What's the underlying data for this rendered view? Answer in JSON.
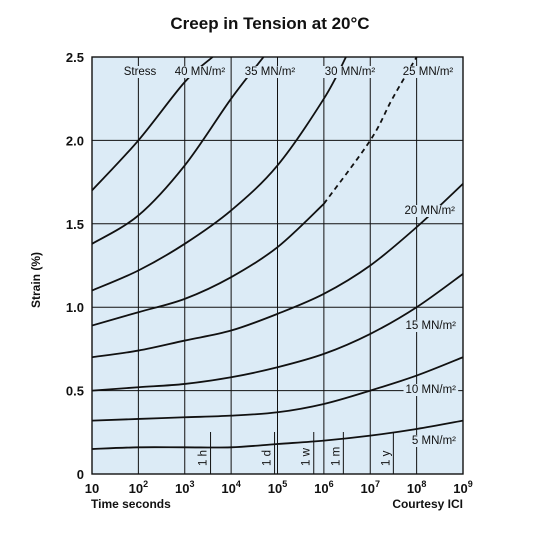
{
  "chart_data": {
    "type": "line",
    "title": "Creep in Tension at 20°C",
    "xlabel": "Time seconds",
    "ylabel": "Strain (%)",
    "credit": "Courtesy ICI",
    "x_scale": "log",
    "xlim": [
      10,
      1000000000
    ],
    "ylim": [
      0,
      2.5
    ],
    "grid": true,
    "x_ticks": [
      {
        "value": 10,
        "label": "10"
      },
      {
        "value": 100,
        "label": "10",
        "exp": "2"
      },
      {
        "value": 1000,
        "label": "10",
        "exp": "3"
      },
      {
        "value": 10000,
        "label": "10",
        "exp": "4"
      },
      {
        "value": 100000,
        "label": "10",
        "exp": "5"
      },
      {
        "value": 1000000,
        "label": "10",
        "exp": "6"
      },
      {
        "value": 10000000,
        "label": "10",
        "exp": "7"
      },
      {
        "value": 100000000,
        "label": "10",
        "exp": "8"
      },
      {
        "value": 1000000000,
        "label": "10",
        "exp": "9"
      }
    ],
    "y_ticks": [
      {
        "value": 0,
        "label": "0"
      },
      {
        "value": 0.5,
        "label": "0.5"
      },
      {
        "value": 1.0,
        "label": "1.0"
      },
      {
        "value": 1.5,
        "label": "1.5"
      },
      {
        "value": 2.0,
        "label": "2.0"
      },
      {
        "value": 2.5,
        "label": "2.5"
      }
    ],
    "time_markers": [
      {
        "value": 3600,
        "label": "1 h"
      },
      {
        "value": 86400,
        "label": "1 d"
      },
      {
        "value": 604800,
        "label": "1 w"
      },
      {
        "value": 2630000,
        "label": "1 m"
      },
      {
        "value": 31500000,
        "label": "1 y"
      }
    ],
    "stress_header": "Stress",
    "series": [
      {
        "name": "40 MN/m²",
        "labeled": true,
        "x": [
          10,
          100,
          1000,
          4000
        ],
        "y": [
          1.7,
          2.0,
          2.35,
          2.5
        ]
      },
      {
        "name": "35 MN/m²",
        "labeled": true,
        "x": [
          10,
          100,
          1000,
          10000,
          50000
        ],
        "y": [
          1.38,
          1.55,
          1.85,
          2.25,
          2.5
        ]
      },
      {
        "name": "30 MN/m²",
        "labeled": true,
        "x": [
          10,
          100,
          1000,
          10000,
          100000,
          1000000,
          3000000
        ],
        "y": [
          1.1,
          1.22,
          1.38,
          1.58,
          1.85,
          2.25,
          2.5
        ]
      },
      {
        "name": "25 MN/m²",
        "labeled": true,
        "dashed_from": 5,
        "x": [
          10,
          100,
          1000,
          10000,
          100000,
          1000000,
          10000000,
          30000000,
          100000000
        ],
        "y": [
          0.89,
          0.97,
          1.05,
          1.18,
          1.36,
          1.62,
          2.0,
          2.25,
          2.5
        ]
      },
      {
        "name": "",
        "labeled": false,
        "x": [
          10,
          100,
          1000,
          10000,
          100000,
          1000000,
          10000000,
          100000000,
          1000000000
        ],
        "y": [
          0.7,
          0.74,
          0.8,
          0.86,
          0.96,
          1.08,
          1.25,
          1.48,
          1.74
        ]
      },
      {
        "name": "20 MN/m²",
        "labeled": true,
        "x": [
          10,
          100,
          1000,
          10000,
          100000,
          1000000,
          10000000,
          100000000,
          1000000000
        ],
        "y": [
          0.5,
          0.52,
          0.54,
          0.58,
          0.64,
          0.72,
          0.84,
          1.0,
          1.2
        ]
      },
      {
        "name": "15 MN/m²",
        "labeled": true,
        "x": [
          10,
          100,
          1000,
          10000,
          100000,
          1000000,
          10000000,
          100000000,
          1000000000
        ],
        "y": [
          0.32,
          0.33,
          0.34,
          0.35,
          0.37,
          0.42,
          0.5,
          0.59,
          0.7
        ]
      },
      {
        "name": "10 MN/m²",
        "labeled": true,
        "x": [
          10,
          100,
          1000,
          10000,
          100000,
          1000000,
          10000000,
          100000000,
          1000000000
        ],
        "y": [
          0.15,
          0.16,
          0.16,
          0.16,
          0.18,
          0.2,
          0.23,
          0.27,
          0.32
        ]
      },
      {
        "name": "5 MN/m²",
        "labeled": true,
        "x": [],
        "y": []
      }
    ]
  }
}
